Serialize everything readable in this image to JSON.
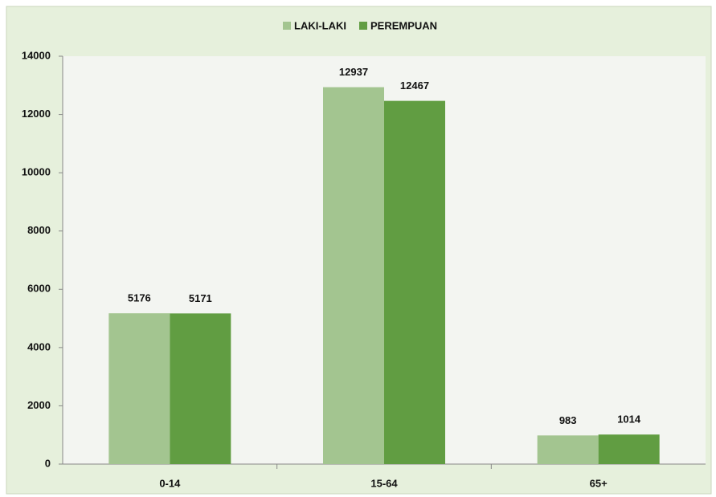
{
  "chart_data": {
    "type": "bar",
    "categories": [
      "0-14",
      "15-64",
      "65+"
    ],
    "series": [
      {
        "name": "LAKI-LAKI",
        "color": "#a3c590",
        "values": [
          5176,
          12937,
          983
        ]
      },
      {
        "name": "PEREMPUAN",
        "color": "#619d42",
        "values": [
          5171,
          12467,
          1014
        ]
      }
    ],
    "ylim": [
      0,
      14000
    ],
    "yticks": [
      0,
      2000,
      4000,
      6000,
      8000,
      10000,
      12000,
      14000
    ],
    "legend": "top",
    "grid": false
  }
}
